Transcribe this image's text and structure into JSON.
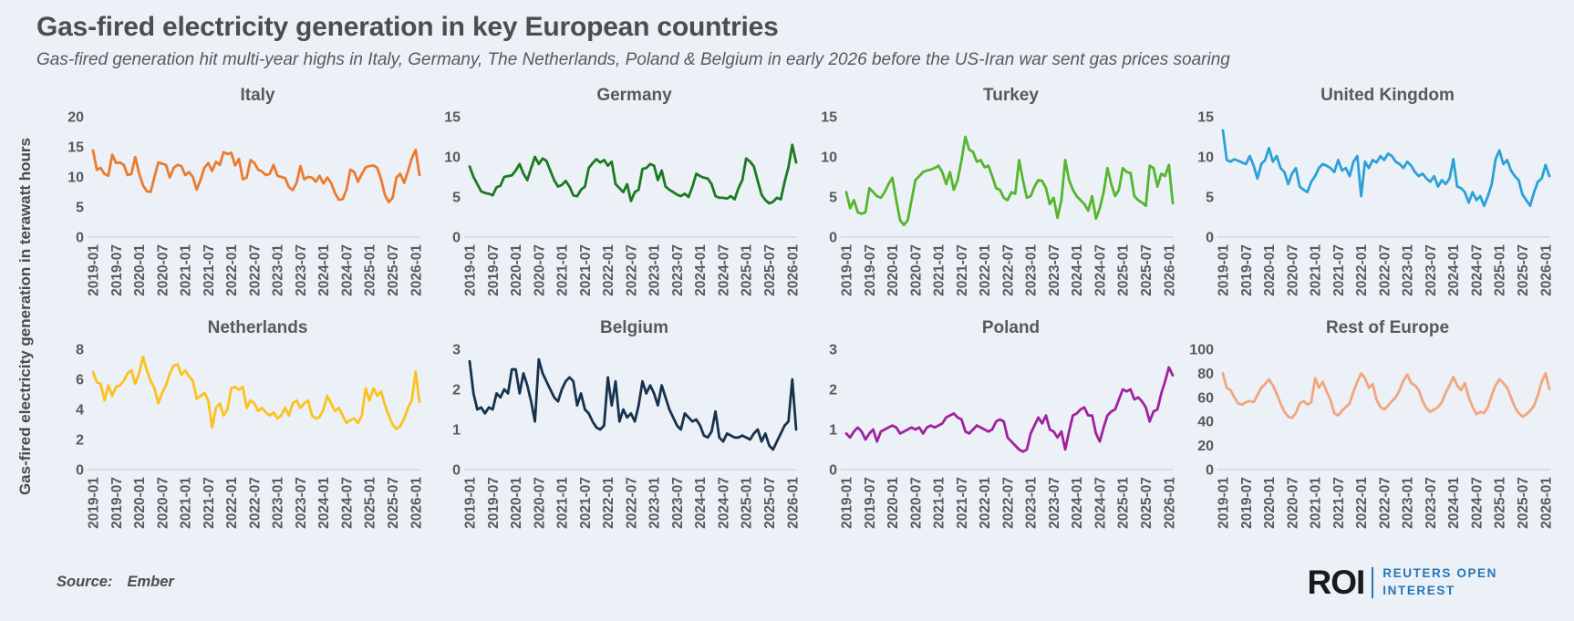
{
  "page": {
    "title": "Gas-fired electricity generation in key European countries",
    "subtitle": "Gas-fired generation hit multi-year highs in Italy, Germany, The Netherlands, Poland & Belgium in early 2026 before the US-Iran war sent gas prices soaring",
    "y_axis_label": "Gas-fired electricity generation in terawatt hours",
    "source_label": "Source:",
    "source_value": "Ember",
    "logo": {
      "abbr": "ROI",
      "line1": "REUTERS OPEN",
      "line2": "INTEREST"
    }
  },
  "colors": {
    "background": "#ECF1F7",
    "baseline": "#CDD2D9",
    "tick_text": "#58595B",
    "logo_blue": "#2576B9"
  },
  "chart_data": [
    {
      "type": "line",
      "title": "Italy",
      "color": "#EC7A2F",
      "ylim": [
        0,
        20
      ],
      "yticks": [
        0,
        5,
        10,
        15,
        20
      ],
      "x_start": "2019-01",
      "x_freq": "monthly",
      "grid": "baseline-only",
      "legend": "none",
      "x_tick_labels": [
        "2019-01",
        "2019-07",
        "2020-01",
        "2020-07",
        "2021-01",
        "2021-07",
        "2022-01",
        "2022-07",
        "2023-01",
        "2023-07",
        "2024-01",
        "2024-07",
        "2025-01",
        "2025-07",
        "2026-01"
      ],
      "values": [
        14.4,
        11.2,
        11.5,
        10.5,
        10.2,
        13.7,
        12.3,
        12.4,
        12.0,
        10.3,
        10.5,
        13.3,
        10.6,
        8.6,
        7.6,
        7.5,
        10.0,
        12.4,
        12.2,
        12.0,
        9.9,
        11.5,
        12.0,
        11.8,
        10.3,
        10.8,
        10.0,
        7.9,
        9.5,
        11.5,
        12.3,
        11.0,
        12.5,
        12.0,
        14.1,
        13.8,
        14.0,
        11.9,
        13.0,
        9.6,
        9.9,
        12.8,
        12.3,
        11.2,
        10.9,
        10.3,
        10.5,
        12.0,
        10.2,
        10.0,
        9.8,
        8.3,
        7.8,
        9.0,
        11.8,
        9.6,
        10.0,
        9.9,
        9.2,
        10.2,
        8.9,
        9.9,
        9.0,
        7.3,
        6.2,
        6.3,
        7.9,
        11.2,
        10.8,
        9.2,
        10.5,
        11.6,
        11.8,
        11.9,
        11.5,
        9.6,
        7.0,
        5.8,
        6.5,
        9.9,
        10.5,
        9.0,
        11.0,
        13.1,
        14.5,
        10.3
      ]
    },
    {
      "type": "line",
      "title": "Germany",
      "color": "#1B7A21",
      "ylim": [
        0,
        15
      ],
      "yticks": [
        0,
        5,
        10,
        15
      ],
      "x_start": "2019-01",
      "x_freq": "monthly",
      "grid": "baseline-only",
      "legend": "none",
      "x_tick_labels": [
        "2019-01",
        "2019-07",
        "2020-01",
        "2020-07",
        "2021-01",
        "2021-07",
        "2022-01",
        "2022-07",
        "2023-01",
        "2023-07",
        "2024-01",
        "2024-07",
        "2025-01",
        "2025-07",
        "2026-01"
      ],
      "values": [
        8.8,
        7.5,
        6.6,
        5.7,
        5.5,
        5.4,
        5.2,
        6.2,
        6.4,
        7.5,
        7.6,
        7.7,
        8.3,
        9.1,
        7.9,
        7.1,
        8.6,
        10.0,
        9.1,
        9.8,
        9.5,
        8.3,
        7.1,
        6.3,
        6.5,
        7.0,
        6.3,
        5.2,
        5.1,
        5.9,
        6.3,
        8.6,
        9.2,
        9.7,
        9.3,
        9.6,
        8.9,
        9.4,
        6.6,
        6.1,
        5.6,
        6.6,
        4.5,
        5.6,
        5.9,
        8.5,
        8.6,
        9.1,
        8.9,
        7.1,
        8.3,
        6.3,
        5.9,
        5.6,
        5.3,
        5.1,
        5.4,
        5.0,
        6.3,
        7.9,
        7.6,
        7.4,
        7.3,
        6.6,
        5.1,
        4.9,
        4.9,
        4.8,
        5.1,
        4.7,
        6.1,
        7.1,
        9.8,
        9.4,
        8.8,
        7.0,
        5.3,
        4.6,
        4.2,
        4.4,
        4.9,
        4.7,
        6.9,
        8.7,
        11.5,
        9.3
      ]
    },
    {
      "type": "line",
      "title": "Turkey",
      "color": "#54B62C",
      "ylim": [
        0,
        15
      ],
      "yticks": [
        0,
        5,
        10,
        15
      ],
      "x_start": "2019-01",
      "x_freq": "monthly",
      "grid": "baseline-only",
      "legend": "none",
      "x_tick_labels": [
        "2019-01",
        "2019-07",
        "2020-01",
        "2020-07",
        "2021-01",
        "2021-07",
        "2022-01",
        "2022-07",
        "2023-01",
        "2023-07",
        "2024-01",
        "2024-07",
        "2025-01",
        "2025-07",
        "2026-01"
      ],
      "values": [
        5.6,
        3.6,
        4.6,
        3.1,
        2.9,
        3.1,
        6.1,
        5.6,
        5.1,
        4.9,
        5.6,
        6.6,
        7.4,
        4.6,
        2.1,
        1.5,
        2.1,
        4.6,
        7.1,
        7.6,
        8.1,
        8.3,
        8.4,
        8.6,
        8.9,
        8.1,
        6.6,
        8.1,
        5.9,
        7.1,
        9.6,
        12.5,
        10.9,
        10.6,
        9.4,
        9.6,
        8.7,
        8.9,
        7.6,
        6.1,
        5.9,
        4.9,
        4.6,
        5.6,
        5.4,
        9.6,
        7.1,
        4.9,
        5.1,
        6.3,
        7.1,
        7.0,
        6.1,
        4.1,
        4.9,
        2.4,
        4.6,
        9.6,
        7.1,
        5.9,
        5.1,
        4.6,
        4.1,
        3.3,
        5.1,
        2.3,
        3.6,
        5.6,
        8.6,
        6.6,
        5.1,
        5.9,
        8.6,
        8.1,
        8.0,
        5.1,
        4.6,
        4.3,
        3.9,
        8.9,
        8.6,
        6.3,
        7.9,
        7.6,
        9.0,
        4.2
      ]
    },
    {
      "type": "line",
      "title": "United Kingdom",
      "color": "#2BA0D9",
      "ylim": [
        0,
        15
      ],
      "yticks": [
        0,
        5,
        10,
        15
      ],
      "x_start": "2019-01",
      "x_freq": "monthly",
      "grid": "baseline-only",
      "legend": "none",
      "x_tick_labels": [
        "2019-01",
        "2019-07",
        "2020-01",
        "2020-07",
        "2021-01",
        "2021-07",
        "2022-01",
        "2022-07",
        "2023-01",
        "2023-07",
        "2024-01",
        "2024-07",
        "2025-01",
        "2025-07",
        "2026-01"
      ],
      "values": [
        13.3,
        9.6,
        9.4,
        9.7,
        9.5,
        9.3,
        9.1,
        10.1,
        8.9,
        7.3,
        9.1,
        9.6,
        11.1,
        9.4,
        10.1,
        8.6,
        8.1,
        6.6,
        7.9,
        8.6,
        6.3,
        5.9,
        5.6,
        6.9,
        7.6,
        8.6,
        9.1,
        8.9,
        8.6,
        8.1,
        9.6,
        8.3,
        8.6,
        7.6,
        9.4,
        10.1,
        5.1,
        9.4,
        8.6,
        9.6,
        9.3,
        10.1,
        9.6,
        10.4,
        10.1,
        9.4,
        9.1,
        8.6,
        9.4,
        8.9,
        8.1,
        7.6,
        7.9,
        7.3,
        6.9,
        7.6,
        6.3,
        7.1,
        6.6,
        7.3,
        9.7,
        6.3,
        6.1,
        5.6,
        4.3,
        5.6,
        4.6,
        5.1,
        3.9,
        5.1,
        6.6,
        9.7,
        10.8,
        9.1,
        9.6,
        8.3,
        7.6,
        7.1,
        5.3,
        4.6,
        3.9,
        5.6,
        6.9,
        7.3,
        9.0,
        7.6
      ]
    },
    {
      "type": "line",
      "title": "Netherlands",
      "color": "#FCC21D",
      "ylim": [
        0,
        8
      ],
      "yticks": [
        0,
        2,
        4,
        6,
        8
      ],
      "x_start": "2019-01",
      "x_freq": "monthly",
      "grid": "baseline-only",
      "legend": "none",
      "x_tick_labels": [
        "2019-01",
        "2019-07",
        "2020-01",
        "2020-07",
        "2021-01",
        "2021-07",
        "2022-01",
        "2022-07",
        "2023-01",
        "2023-07",
        "2024-01",
        "2024-07",
        "2025-01",
        "2025-07",
        "2026-01"
      ],
      "values": [
        6.5,
        5.8,
        5.7,
        4.6,
        5.6,
        4.9,
        5.5,
        5.6,
        5.9,
        6.4,
        6.6,
        5.7,
        6.4,
        7.5,
        6.6,
        5.9,
        5.4,
        4.4,
        5.1,
        5.6,
        6.4,
        6.9,
        7.0,
        6.3,
        6.6,
        6.2,
        5.9,
        4.7,
        4.9,
        5.1,
        4.6,
        2.8,
        4.1,
        4.4,
        3.6,
        4.0,
        5.4,
        5.5,
        5.3,
        5.5,
        4.1,
        4.6,
        4.4,
        3.9,
        4.1,
        3.8,
        3.6,
        3.8,
        3.4,
        3.6,
        4.1,
        3.6,
        4.4,
        4.6,
        4.1,
        4.4,
        4.6,
        3.6,
        3.4,
        3.5,
        4.0,
        4.9,
        4.4,
        3.9,
        4.1,
        3.6,
        3.1,
        3.3,
        3.4,
        3.1,
        3.6,
        5.4,
        4.6,
        5.4,
        4.9,
        5.2,
        4.3,
        3.6,
        3.0,
        2.7,
        2.9,
        3.4,
        4.1,
        4.6,
        6.5,
        4.5
      ]
    },
    {
      "type": "line",
      "title": "Belgium",
      "color": "#17324F",
      "ylim": [
        0,
        3
      ],
      "yticks": [
        0,
        1,
        2,
        3
      ],
      "x_start": "2019-01",
      "x_freq": "monthly",
      "grid": "baseline-only",
      "legend": "none",
      "x_tick_labels": [
        "2019-01",
        "2019-07",
        "2020-01",
        "2020-07",
        "2021-01",
        "2021-07",
        "2022-01",
        "2022-07",
        "2023-01",
        "2023-07",
        "2024-01",
        "2024-07",
        "2025-01",
        "2025-07",
        "2026-01"
      ],
      "values": [
        2.7,
        1.9,
        1.5,
        1.55,
        1.4,
        1.55,
        1.5,
        1.9,
        1.8,
        2.0,
        1.9,
        2.5,
        2.5,
        1.9,
        2.4,
        2.1,
        1.7,
        1.2,
        2.75,
        2.4,
        2.2,
        2.0,
        1.8,
        1.7,
        2.0,
        2.2,
        2.3,
        2.2,
        1.6,
        1.9,
        1.5,
        1.4,
        1.2,
        1.05,
        1.0,
        1.1,
        2.3,
        1.6,
        2.2,
        1.2,
        1.5,
        1.3,
        1.4,
        1.2,
        1.6,
        2.2,
        1.9,
        2.1,
        1.9,
        1.6,
        2.1,
        1.8,
        1.5,
        1.3,
        1.1,
        1.0,
        1.4,
        1.3,
        1.2,
        1.25,
        1.1,
        0.85,
        0.8,
        0.95,
        1.45,
        0.8,
        0.7,
        0.9,
        0.85,
        0.8,
        0.8,
        0.85,
        0.8,
        0.75,
        0.9,
        1.0,
        0.7,
        0.9,
        0.6,
        0.5,
        0.7,
        0.9,
        1.1,
        1.2,
        2.25,
        1.0
      ]
    },
    {
      "type": "line",
      "title": "Poland",
      "color": "#A1219E",
      "ylim": [
        0,
        3
      ],
      "yticks": [
        0,
        1,
        2,
        3
      ],
      "x_start": "2019-01",
      "x_freq": "monthly",
      "grid": "baseline-only",
      "legend": "none",
      "x_tick_labels": [
        "2019-01",
        "2019-07",
        "2020-01",
        "2020-07",
        "2021-01",
        "2021-07",
        "2022-01",
        "2022-07",
        "2023-01",
        "2023-07",
        "2024-01",
        "2024-07",
        "2025-01",
        "2025-07",
        "2026-01"
      ],
      "values": [
        0.9,
        0.8,
        0.95,
        1.05,
        0.95,
        0.75,
        0.9,
        1.0,
        0.7,
        0.95,
        1.0,
        1.05,
        1.1,
        1.05,
        0.9,
        0.95,
        1.0,
        1.05,
        1.0,
        1.05,
        0.9,
        1.05,
        1.1,
        1.05,
        1.1,
        1.15,
        1.3,
        1.35,
        1.4,
        1.3,
        1.25,
        0.95,
        0.9,
        1.0,
        1.1,
        1.05,
        1.0,
        0.95,
        1.0,
        1.2,
        1.25,
        1.2,
        0.8,
        0.7,
        0.6,
        0.5,
        0.45,
        0.5,
        0.9,
        1.1,
        1.3,
        1.15,
        1.35,
        1.0,
        0.95,
        0.8,
        0.95,
        0.5,
        0.95,
        1.35,
        1.4,
        1.5,
        1.55,
        1.35,
        1.35,
        0.9,
        0.7,
        1.05,
        1.35,
        1.45,
        1.5,
        1.75,
        2.0,
        1.95,
        2.0,
        1.75,
        1.8,
        1.7,
        1.55,
        1.2,
        1.45,
        1.5,
        1.9,
        2.2,
        2.55,
        2.35
      ]
    },
    {
      "type": "line",
      "title": "Rest of Europe",
      "color": "#F3A57E",
      "ylim": [
        0,
        100
      ],
      "yticks": [
        0,
        20,
        40,
        60,
        80,
        100
      ],
      "x_start": "2019-01",
      "x_freq": "monthly",
      "grid": "baseline-only",
      "legend": "none",
      "x_tick_labels": [
        "2019-01",
        "2019-07",
        "2020-01",
        "2020-07",
        "2021-01",
        "2021-07",
        "2022-01",
        "2022-07",
        "2023-01",
        "2023-07",
        "2024-01",
        "2024-07",
        "2025-01",
        "2025-07",
        "2026-01"
      ],
      "values": [
        80,
        68,
        66,
        60,
        55,
        54,
        56,
        57,
        56,
        62,
        68,
        71,
        75,
        70,
        63,
        55,
        48,
        44,
        43,
        47,
        55,
        57,
        54,
        56,
        76,
        68,
        73,
        65,
        58,
        47,
        45,
        49,
        52,
        55,
        65,
        73,
        80,
        76,
        68,
        71,
        58,
        52,
        50,
        53,
        57,
        60,
        66,
        74,
        79,
        72,
        70,
        66,
        57,
        51,
        48,
        50,
        52,
        56,
        64,
        70,
        77,
        70,
        66,
        72,
        60,
        52,
        46,
        48,
        47,
        52,
        62,
        70,
        75,
        72,
        68,
        60,
        52,
        47,
        44,
        46,
        49,
        53,
        62,
        73,
        80,
        67
      ]
    }
  ]
}
